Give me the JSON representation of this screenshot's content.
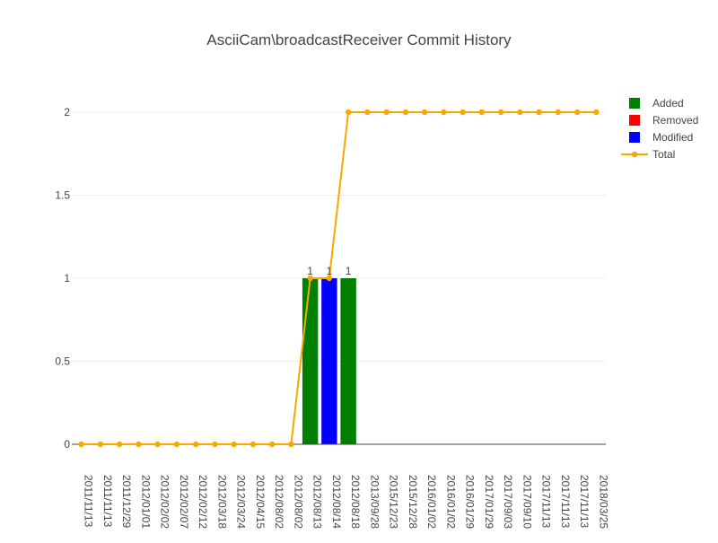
{
  "chart_data": {
    "type": "bar",
    "title": "AsciiCam\\broadcastReceiver Commit History",
    "xlabel": "",
    "ylabel": "",
    "ylim": [
      0,
      2.2
    ],
    "yticks": [
      0,
      0.5,
      1,
      1.5,
      2
    ],
    "ytick_labels": [
      "0",
      "0.5",
      "1",
      "1.5",
      "2"
    ],
    "grid": true,
    "legend_position": "top-right",
    "categories": [
      "2011/11/13",
      "2011/11/13",
      "2011/12/29",
      "2012/01/01",
      "2012/02/02",
      "2012/02/07",
      "2012/02/12",
      "2012/03/18",
      "2012/03/24",
      "2012/04/15",
      "2012/08/02",
      "2012/08/02",
      "2012/08/13",
      "2012/08/14",
      "2012/08/18",
      "2013/09/28",
      "2015/12/23",
      "2015/12/28",
      "2016/01/02",
      "2016/01/02",
      "2016/01/29",
      "2017/01/29",
      "2017/09/03",
      "2017/09/10",
      "2017/11/13",
      "2017/11/13",
      "2017/11/13",
      "2018/03/25"
    ],
    "series": [
      {
        "name": "Added",
        "type": "bar",
        "color": "#008000",
        "values": [
          0,
          0,
          0,
          0,
          0,
          0,
          0,
          0,
          0,
          0,
          0,
          0,
          1,
          0,
          1,
          0,
          0,
          0,
          0,
          0,
          0,
          0,
          0,
          0,
          0,
          0,
          0,
          0
        ]
      },
      {
        "name": "Removed",
        "type": "bar",
        "color": "#ff0000",
        "values": [
          0,
          0,
          0,
          0,
          0,
          0,
          0,
          0,
          0,
          0,
          0,
          0,
          0,
          0,
          0,
          0,
          0,
          0,
          0,
          0,
          0,
          0,
          0,
          0,
          0,
          0,
          0,
          0
        ]
      },
      {
        "name": "Modified",
        "type": "bar",
        "color": "#0000ff",
        "values": [
          0,
          0,
          0,
          0,
          0,
          0,
          0,
          0,
          0,
          0,
          0,
          0,
          0,
          1,
          0,
          0,
          0,
          0,
          0,
          0,
          0,
          0,
          0,
          0,
          0,
          0,
          0,
          0
        ]
      },
      {
        "name": "Total",
        "type": "line",
        "color": "#ffa500",
        "values": [
          0,
          0,
          0,
          0,
          0,
          0,
          0,
          0,
          0,
          0,
          0,
          0,
          1,
          1,
          2,
          2,
          2,
          2,
          2,
          2,
          2,
          2,
          2,
          2,
          2,
          2,
          2,
          2
        ]
      }
    ],
    "bar_labels": [
      {
        "index": 12,
        "series": "Added",
        "text": "1"
      },
      {
        "index": 13,
        "series": "Modified",
        "text": "1"
      },
      {
        "index": 14,
        "series": "Added",
        "text": "1"
      }
    ]
  }
}
